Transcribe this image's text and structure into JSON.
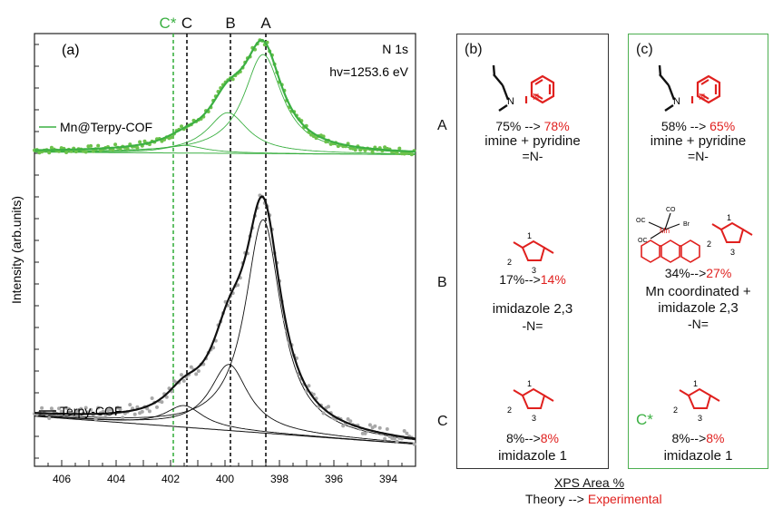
{
  "chart_data": {
    "type": "line",
    "panel_label": "(a)",
    "xlim": [
      407,
      393
    ],
    "xticks": [
      406,
      404,
      402,
      400,
      398,
      396,
      394
    ],
    "ylabel": "Intensity (arb.units)",
    "annotation": [
      "N 1s",
      "hv=1253.6 eV"
    ],
    "markers": [
      {
        "label": "C*",
        "x": 401.9,
        "color": "#3cb043"
      },
      {
        "label": "C",
        "x": 401.4,
        "color": "#111111"
      },
      {
        "label": "B",
        "x": 399.8,
        "color": "#111111"
      },
      {
        "label": "A",
        "x": 398.5,
        "color": "#111111"
      }
    ],
    "series": [
      {
        "name": "Mn@Terpy-COF",
        "color": "#3cb043",
        "dot_color": "#6dc24b",
        "baseline": [
          0.11,
          0.09
        ],
        "peaks": [
          {
            "center": 398.6,
            "height": 0.78,
            "width": 1.7
          },
          {
            "center": 399.9,
            "height": 0.32,
            "width": 1.8
          },
          {
            "center": 401.5,
            "height": 0.06,
            "width": 1.8
          }
        ]
      },
      {
        "name": "Terpy-COF",
        "color": "#111111",
        "dot_color": "#a8a8a8",
        "baseline": [
          0.14,
          0.03
        ],
        "peaks": [
          {
            "center": 398.6,
            "height": 0.84,
            "width": 1.6
          },
          {
            "center": 399.85,
            "height": 0.26,
            "width": 1.7
          },
          {
            "center": 401.5,
            "height": 0.085,
            "width": 1.7
          }
        ]
      }
    ]
  },
  "panel_b": {
    "label": "(b)",
    "A": {
      "theory": "75%",
      "arrow": " --> ",
      "exp": "78%",
      "name": "imine + pyridine",
      "bond": "=N-"
    },
    "B": {
      "theory": "17%",
      "arrow": "-->",
      "exp": "14%",
      "name": "imidazole 2,3",
      "bond": "-N="
    },
    "C": {
      "theory": "8%",
      "arrow": "-->",
      "exp": "8%",
      "name": "imidazole 1"
    }
  },
  "panel_c": {
    "label": "(c)",
    "A": {
      "theory": "58%",
      "arrow": " --> ",
      "exp": "65%",
      "name": "imine + pyridine",
      "bond": "=N-"
    },
    "B": {
      "theory": "34%",
      "arrow": "-->",
      "exp": "27%",
      "line1": "Mn coordinated +",
      "line2": "imidazole 2,3",
      "bond": "-N="
    },
    "C": {
      "theory": "8%",
      "arrow": "-->",
      "exp": "8%",
      "name": "imidazole 1",
      "tag": "C*"
    }
  },
  "row_labels": [
    "A",
    "B",
    "C"
  ],
  "molecule_text": {
    "N": "N",
    "one": "1",
    "two": "2",
    "three": "3",
    "co": "CO",
    "oc": "OC",
    "mn": "Mn",
    "br": "Br"
  },
  "footer": {
    "title": "XPS Area %",
    "line_prefix": "Theory --> ",
    "line_exp": "Experimental"
  }
}
